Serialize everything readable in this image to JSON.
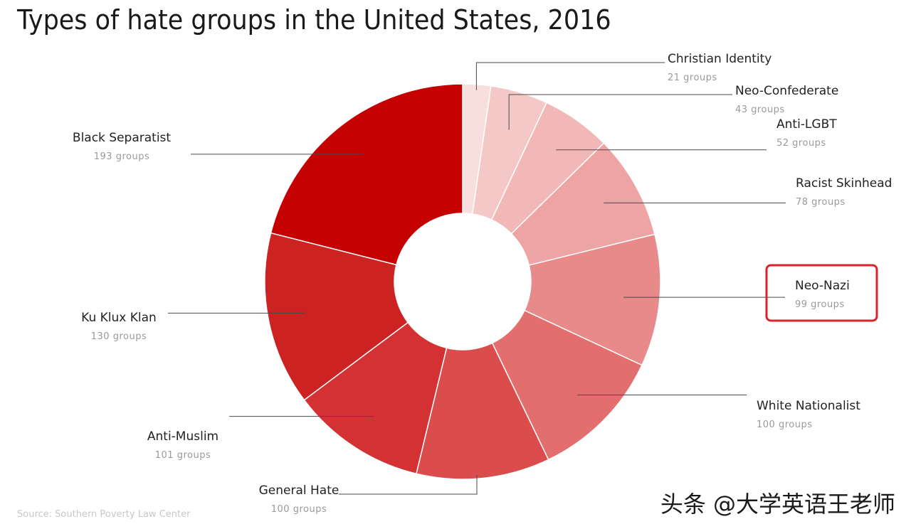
{
  "chart_data": {
    "type": "pie",
    "variant": "donut",
    "title": "Types of hate groups in the United States, 2016",
    "unit_label": "groups",
    "slices": [
      {
        "label": "Christian Identity",
        "value": 21,
        "count_text": "21 groups",
        "color": "#f9dede"
      },
      {
        "label": "Neo-Confederate",
        "value": 43,
        "count_text": "43 groups",
        "color": "#f5c8c8"
      },
      {
        "label": "Anti-LGBT",
        "value": 52,
        "count_text": "52 groups",
        "color": "#f2b8b8"
      },
      {
        "label": "Racist Skinhead",
        "value": 78,
        "count_text": "78 groups",
        "color": "#eea4a4"
      },
      {
        "label": "Neo-Nazi",
        "value": 99,
        "count_text": "99 groups",
        "color": "#e88a8a",
        "highlighted": true
      },
      {
        "label": "White Nationalist",
        "value": 100,
        "count_text": "100 groups",
        "color": "#e36e6e"
      },
      {
        "label": "General Hate",
        "value": 100,
        "count_text": "100 groups",
        "color": "#db4c4c"
      },
      {
        "label": "Anti-Muslim",
        "value": 101,
        "count_text": "101 groups",
        "color": "#d43232"
      },
      {
        "label": "Ku Klux Klan",
        "value": 130,
        "count_text": "130 groups",
        "color": "#cc2222"
      },
      {
        "label": "Black Separatist",
        "value": 193,
        "count_text": "193 groups",
        "color": "#c40000"
      }
    ],
    "highlight_color": "#d9242c",
    "source": "Source: Southern Poverty Law Center"
  },
  "watermark": "头条 @大学英语王老师"
}
